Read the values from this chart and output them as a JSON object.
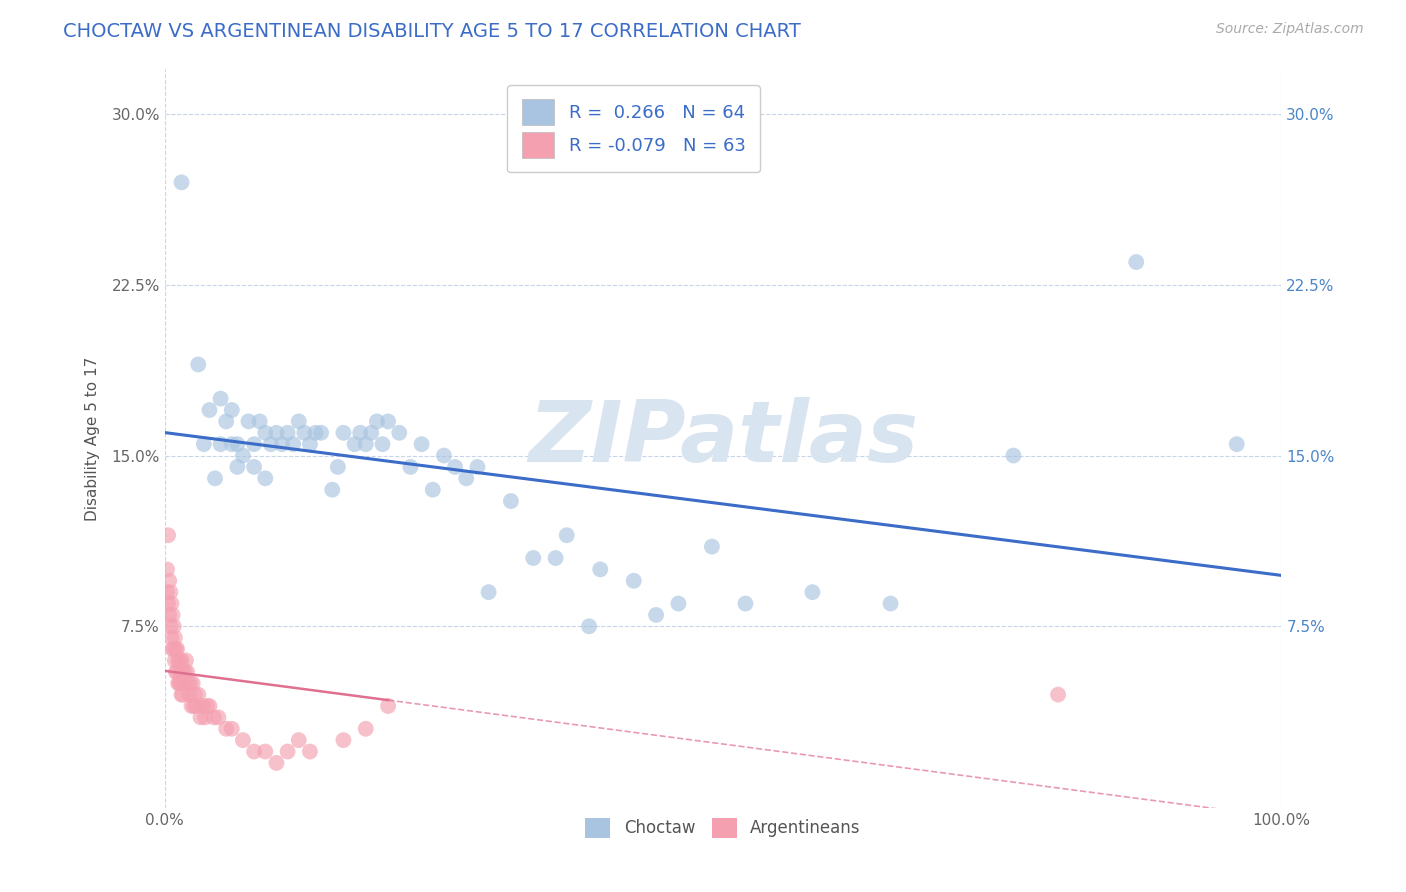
{
  "title": "CHOCTAW VS ARGENTINEAN DISABILITY AGE 5 TO 17 CORRELATION CHART",
  "source_text": "Source: ZipAtlas.com",
  "ylabel": "Disability Age 5 to 17",
  "xlim": [
    0.0,
    1.0
  ],
  "ylim": [
    -0.005,
    0.32
  ],
  "xtick_labels": [
    "0.0%",
    "100.0%"
  ],
  "ytick_labels": [
    "7.5%",
    "15.0%",
    "22.5%",
    "30.0%"
  ],
  "ytick_values": [
    0.075,
    0.15,
    0.225,
    0.3
  ],
  "choctaw_r": 0.266,
  "choctaw_n": 64,
  "argent_r": -0.079,
  "argent_n": 63,
  "choctaw_color": "#a8c4e0",
  "argent_color": "#f4a0b0",
  "choctaw_line_color": "#3b6cc7",
  "argent_line_color": "#e07090",
  "watermark_color": "#d8e4f0",
  "background_color": "#ffffff",
  "grid_color": "#c8d4e8",
  "choctaw_x": [
    0.015,
    0.03,
    0.035,
    0.04,
    0.045,
    0.05,
    0.05,
    0.055,
    0.06,
    0.06,
    0.065,
    0.065,
    0.07,
    0.075,
    0.08,
    0.08,
    0.085,
    0.09,
    0.09,
    0.095,
    0.1,
    0.105,
    0.11,
    0.115,
    0.12,
    0.125,
    0.13,
    0.135,
    0.14,
    0.15,
    0.155,
    0.16,
    0.17,
    0.175,
    0.18,
    0.185,
    0.19,
    0.195,
    0.2,
    0.21,
    0.22,
    0.23,
    0.24,
    0.25,
    0.26,
    0.27,
    0.28,
    0.29,
    0.31,
    0.33,
    0.35,
    0.36,
    0.38,
    0.39,
    0.42,
    0.44,
    0.46,
    0.49,
    0.52,
    0.58,
    0.65,
    0.76,
    0.87,
    0.96
  ],
  "choctaw_y": [
    0.27,
    0.19,
    0.155,
    0.17,
    0.14,
    0.175,
    0.155,
    0.165,
    0.17,
    0.155,
    0.155,
    0.145,
    0.15,
    0.165,
    0.145,
    0.155,
    0.165,
    0.14,
    0.16,
    0.155,
    0.16,
    0.155,
    0.16,
    0.155,
    0.165,
    0.16,
    0.155,
    0.16,
    0.16,
    0.135,
    0.145,
    0.16,
    0.155,
    0.16,
    0.155,
    0.16,
    0.165,
    0.155,
    0.165,
    0.16,
    0.145,
    0.155,
    0.135,
    0.15,
    0.145,
    0.14,
    0.145,
    0.09,
    0.13,
    0.105,
    0.105,
    0.115,
    0.075,
    0.1,
    0.095,
    0.08,
    0.085,
    0.11,
    0.085,
    0.09,
    0.085,
    0.15,
    0.235,
    0.155
  ],
  "argent_x": [
    0.002,
    0.003,
    0.004,
    0.004,
    0.005,
    0.005,
    0.006,
    0.006,
    0.007,
    0.007,
    0.008,
    0.008,
    0.009,
    0.009,
    0.01,
    0.01,
    0.011,
    0.011,
    0.012,
    0.012,
    0.013,
    0.013,
    0.014,
    0.014,
    0.015,
    0.015,
    0.016,
    0.016,
    0.017,
    0.018,
    0.019,
    0.02,
    0.021,
    0.022,
    0.023,
    0.024,
    0.025,
    0.026,
    0.027,
    0.028,
    0.03,
    0.032,
    0.034,
    0.036,
    0.038,
    0.04,
    0.044,
    0.048,
    0.055,
    0.06,
    0.07,
    0.08,
    0.09,
    0.1,
    0.11,
    0.12,
    0.13,
    0.16,
    0.18,
    0.2,
    0.002,
    0.003,
    0.8
  ],
  "argent_y": [
    0.09,
    0.085,
    0.095,
    0.08,
    0.09,
    0.075,
    0.085,
    0.07,
    0.08,
    0.065,
    0.075,
    0.065,
    0.07,
    0.06,
    0.065,
    0.055,
    0.065,
    0.055,
    0.06,
    0.05,
    0.06,
    0.05,
    0.055,
    0.05,
    0.06,
    0.045,
    0.055,
    0.045,
    0.05,
    0.055,
    0.06,
    0.055,
    0.05,
    0.045,
    0.05,
    0.04,
    0.05,
    0.04,
    0.045,
    0.04,
    0.045,
    0.035,
    0.04,
    0.035,
    0.04,
    0.04,
    0.035,
    0.035,
    0.03,
    0.03,
    0.025,
    0.02,
    0.02,
    0.015,
    0.02,
    0.025,
    0.02,
    0.025,
    0.03,
    0.04,
    0.1,
    0.115,
    0.045
  ]
}
